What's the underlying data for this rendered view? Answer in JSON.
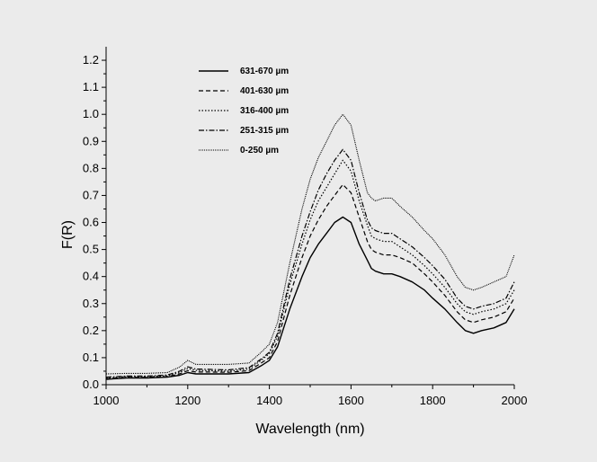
{
  "chart_data": {
    "type": "line",
    "xlabel": "Wavelength (nm)",
    "ylabel": "F(R)",
    "xlim": [
      1000,
      2000
    ],
    "ylim": [
      0.0,
      1.25
    ],
    "x_ticks": [
      1000,
      1200,
      1400,
      1600,
      1800,
      2000
    ],
    "y_ticks": [
      0.0,
      0.1,
      0.2,
      0.3,
      0.4,
      0.5,
      0.6,
      0.7,
      0.8,
      0.9,
      1.0,
      1.1,
      1.2
    ],
    "legend_position": "top-left",
    "grid": false,
    "x": [
      1000,
      1050,
      1100,
      1150,
      1180,
      1200,
      1220,
      1250,
      1300,
      1350,
      1380,
      1400,
      1420,
      1450,
      1480,
      1500,
      1520,
      1540,
      1560,
      1580,
      1600,
      1620,
      1640,
      1650,
      1660,
      1680,
      1700,
      1720,
      1750,
      1780,
      1800,
      1830,
      1860,
      1880,
      1900,
      1920,
      1950,
      1980,
      2000
    ],
    "series": [
      {
        "name": "631-670  µm",
        "style": "solid",
        "values": [
          0.02,
          0.025,
          0.025,
          0.028,
          0.035,
          0.045,
          0.04,
          0.04,
          0.04,
          0.045,
          0.07,
          0.09,
          0.14,
          0.28,
          0.4,
          0.47,
          0.52,
          0.56,
          0.6,
          0.62,
          0.6,
          0.52,
          0.46,
          0.43,
          0.42,
          0.41,
          0.41,
          0.4,
          0.38,
          0.35,
          0.32,
          0.28,
          0.23,
          0.2,
          0.19,
          0.2,
          0.21,
          0.23,
          0.28
        ]
      },
      {
        "name": "401-630  µm",
        "style": "dashed",
        "values": [
          0.022,
          0.027,
          0.027,
          0.03,
          0.04,
          0.052,
          0.047,
          0.047,
          0.046,
          0.052,
          0.08,
          0.1,
          0.16,
          0.33,
          0.47,
          0.55,
          0.61,
          0.66,
          0.7,
          0.74,
          0.71,
          0.62,
          0.53,
          0.5,
          0.49,
          0.48,
          0.48,
          0.47,
          0.45,
          0.41,
          0.38,
          0.33,
          0.27,
          0.24,
          0.23,
          0.24,
          0.25,
          0.27,
          0.32
        ]
      },
      {
        "name": "316-400  µm",
        "style": "dotted",
        "values": [
          0.025,
          0.03,
          0.03,
          0.033,
          0.045,
          0.06,
          0.053,
          0.052,
          0.05,
          0.058,
          0.09,
          0.115,
          0.18,
          0.37,
          0.52,
          0.61,
          0.68,
          0.73,
          0.78,
          0.83,
          0.79,
          0.68,
          0.59,
          0.55,
          0.54,
          0.53,
          0.53,
          0.51,
          0.48,
          0.44,
          0.41,
          0.36,
          0.3,
          0.27,
          0.26,
          0.27,
          0.28,
          0.3,
          0.35
        ]
      },
      {
        "name": "251-315  µm",
        "style": "dashdot",
        "values": [
          0.028,
          0.032,
          0.032,
          0.036,
          0.05,
          0.066,
          0.058,
          0.057,
          0.055,
          0.063,
          0.095,
          0.12,
          0.19,
          0.39,
          0.55,
          0.64,
          0.72,
          0.78,
          0.83,
          0.87,
          0.83,
          0.71,
          0.61,
          0.58,
          0.57,
          0.56,
          0.56,
          0.54,
          0.51,
          0.47,
          0.44,
          0.39,
          0.32,
          0.29,
          0.28,
          0.29,
          0.3,
          0.32,
          0.38
        ]
      },
      {
        "name": "0-250  µm",
        "style": "densedot",
        "values": [
          0.04,
          0.042,
          0.042,
          0.045,
          0.065,
          0.09,
          0.075,
          0.075,
          0.075,
          0.08,
          0.12,
          0.15,
          0.23,
          0.45,
          0.65,
          0.76,
          0.84,
          0.9,
          0.96,
          1.0,
          0.96,
          0.83,
          0.71,
          0.69,
          0.68,
          0.69,
          0.69,
          0.66,
          0.62,
          0.57,
          0.54,
          0.48,
          0.4,
          0.36,
          0.35,
          0.36,
          0.38,
          0.4,
          0.48
        ]
      }
    ]
  }
}
